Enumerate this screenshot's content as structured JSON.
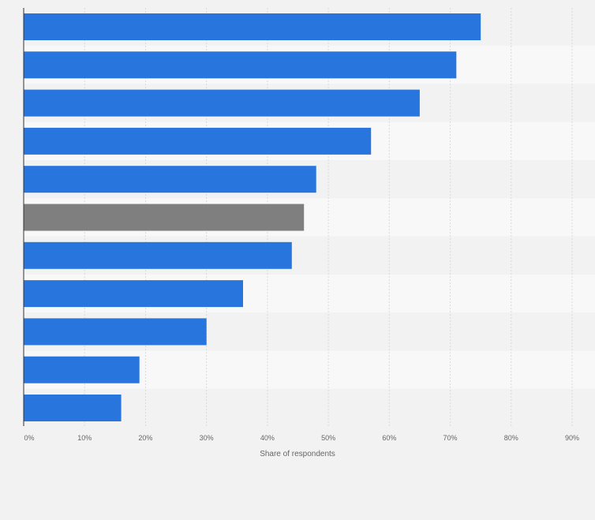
{
  "chart_data": {
    "type": "bar",
    "orientation": "horizontal",
    "values": [
      75,
      71,
      65,
      57,
      48,
      46,
      44,
      36,
      30,
      19,
      16
    ],
    "highlight_index": 5,
    "xlabel": "Share of respondents",
    "xlim": [
      0,
      90
    ],
    "x_ticks": [
      0,
      10,
      20,
      30,
      40,
      50,
      60,
      70,
      80,
      90
    ],
    "x_tick_labels": [
      "0%",
      "10%",
      "20%",
      "30%",
      "40%",
      "50%",
      "60%",
      "70%",
      "80%",
      "90%"
    ],
    "grid": true,
    "legend": "none"
  },
  "colors": {
    "bar": "#2876dd",
    "highlight_bar": "#7f7f7f",
    "band_odd": "#f2f2f2",
    "band_even": "#f8f8f8",
    "gridline": "#d9d9d9",
    "axis": "#333333"
  }
}
